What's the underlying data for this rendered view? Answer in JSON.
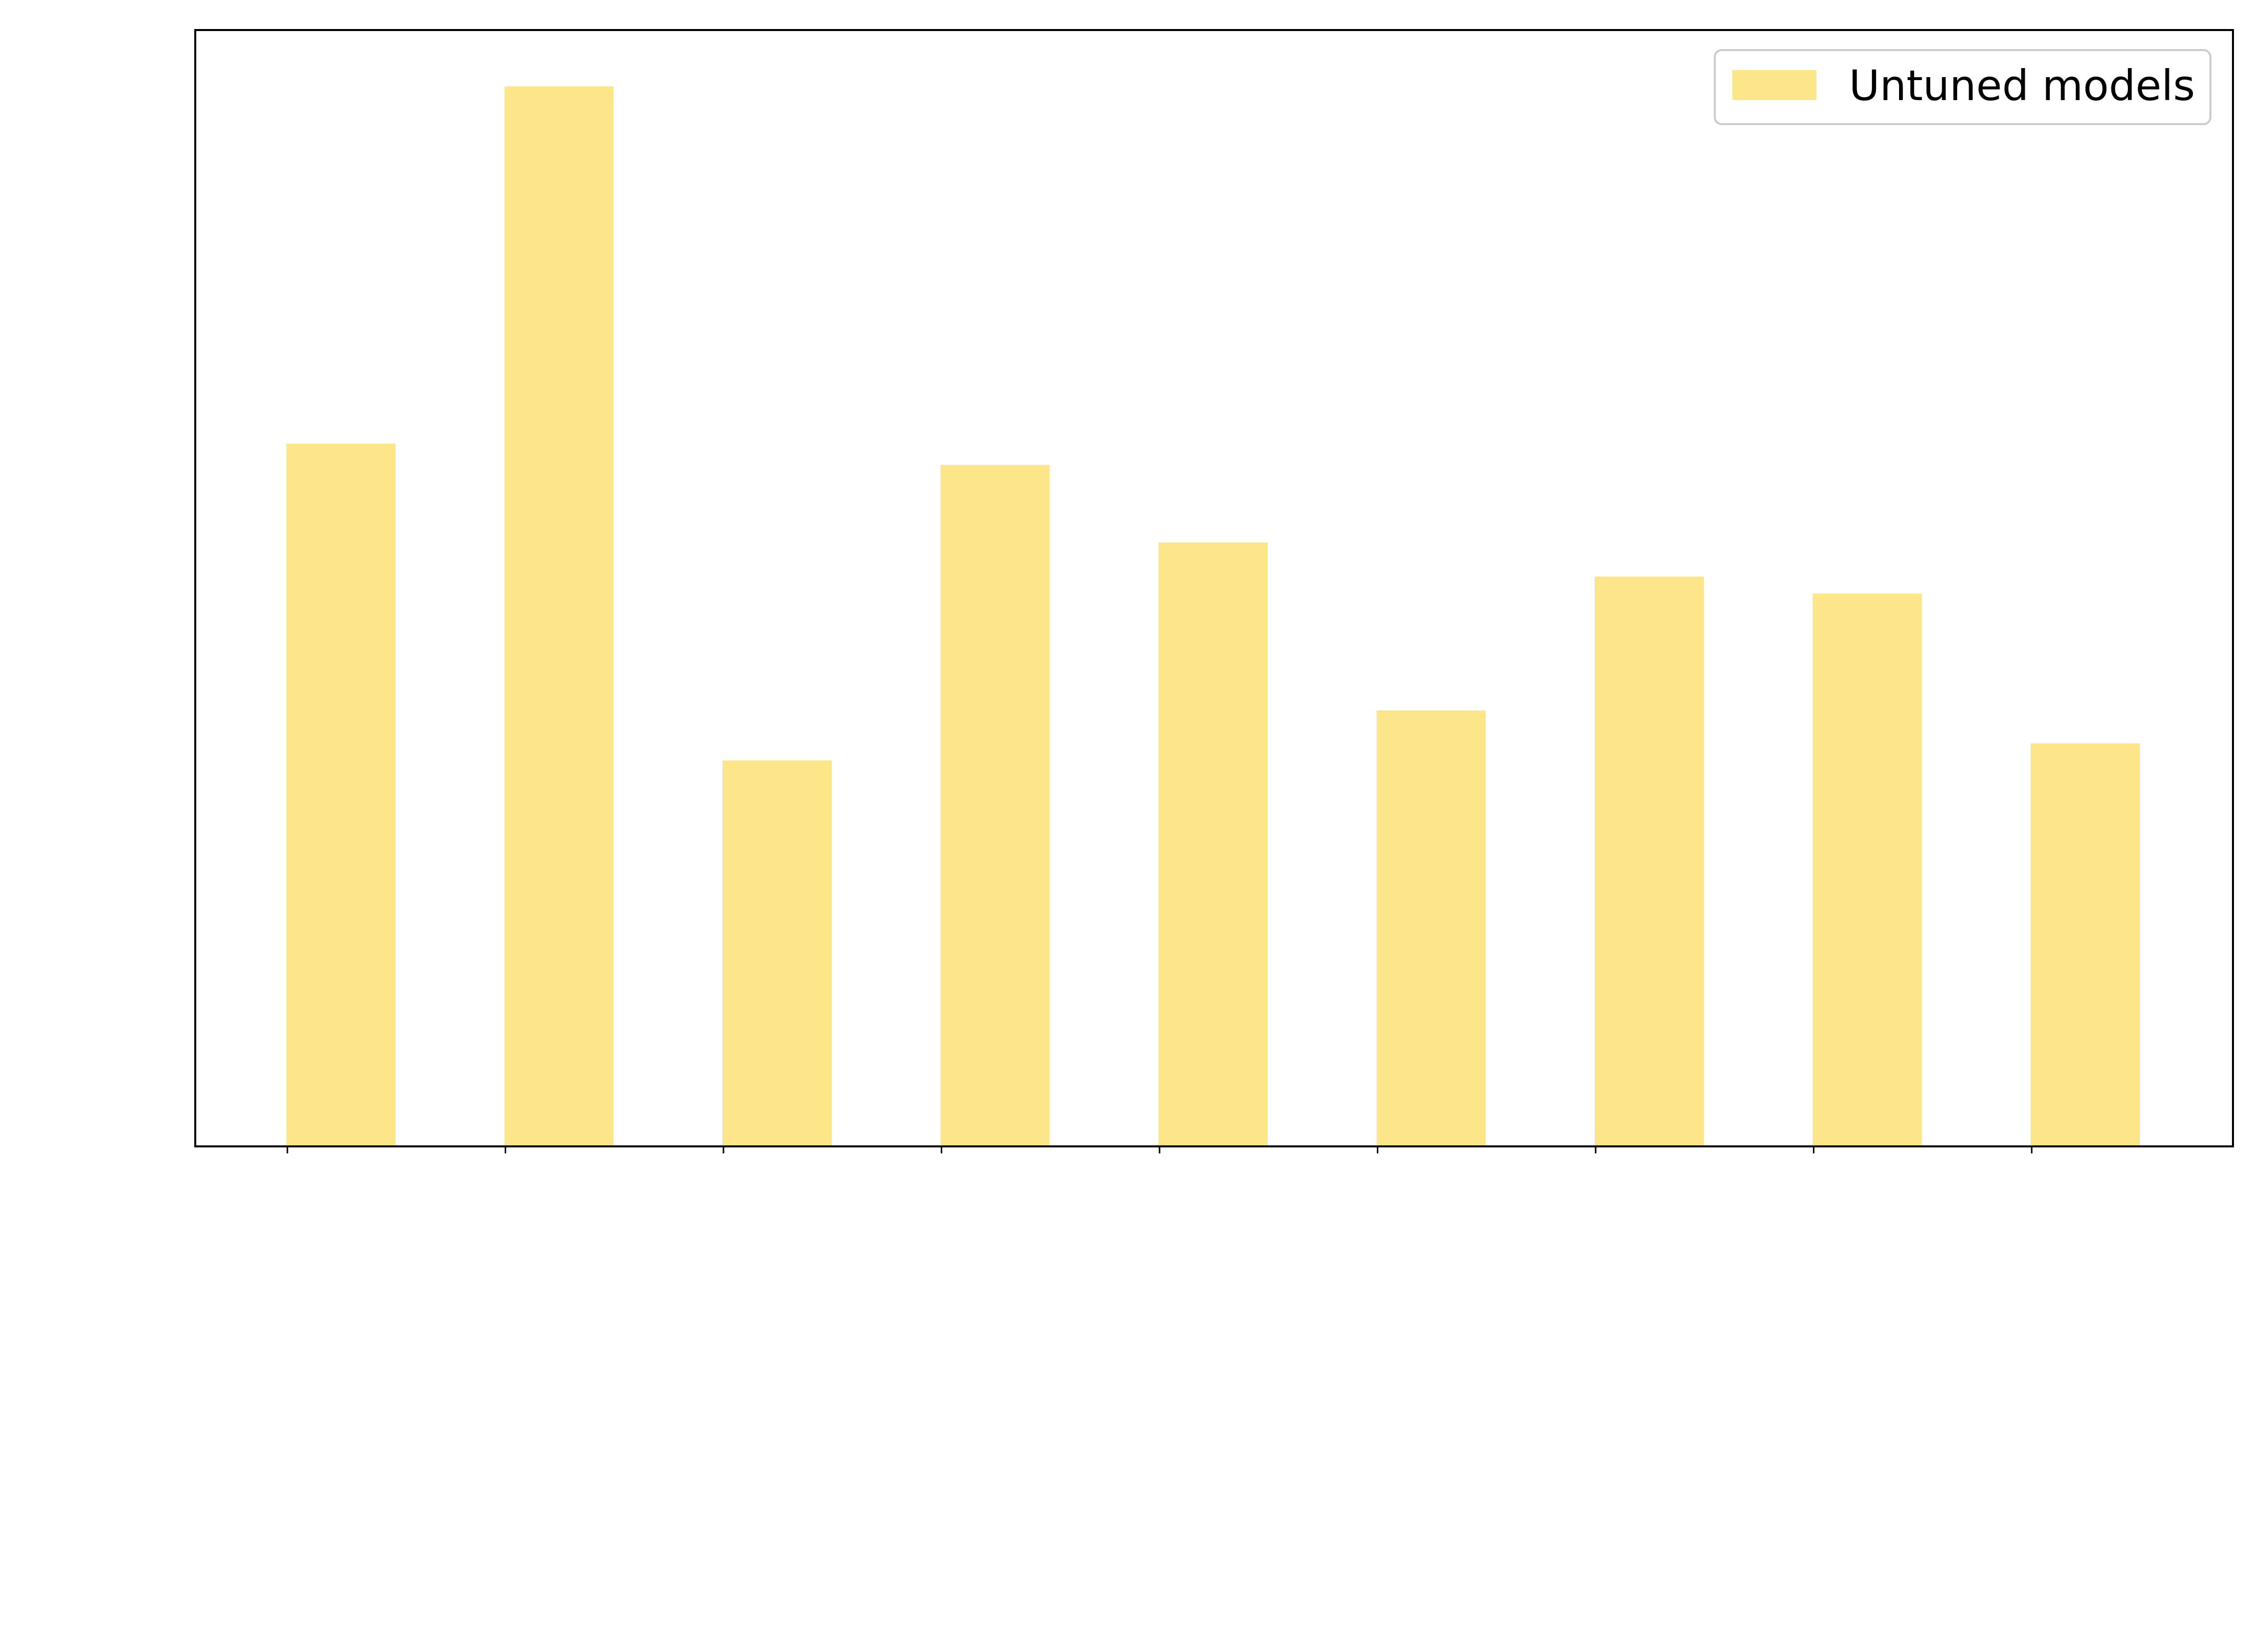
{
  "chart_data": {
    "type": "bar",
    "title": "",
    "xlabel": "",
    "ylabel": "",
    "categories": [
      "",
      "",
      "",
      "",
      "",
      "",
      "",
      "",
      ""
    ],
    "series": [
      {
        "name": "Untuned models",
        "color": "#fde68a",
        "values": [
          66.1,
          99.7,
          36.3,
          64.1,
          56.8,
          41.0,
          53.6,
          52.0,
          37.9
        ]
      }
    ],
    "ylim": [
      0,
      105
    ],
    "grid": false,
    "legend": "top-right",
    "tick_labels_visible": false
  }
}
